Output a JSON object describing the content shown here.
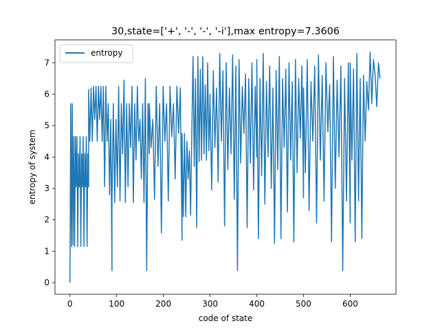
{
  "chart_data": {
    "type": "line",
    "title": "30,state=['+', '-', '-', '-i'],max entropy=7.3606",
    "xlabel": "code of state",
    "ylabel": "entropy of system",
    "xlim": [
      -32,
      698
    ],
    "ylim": [
      -0.37,
      7.73
    ],
    "xticks": [
      0,
      100,
      200,
      300,
      400,
      500,
      600
    ],
    "yticks": [
      0,
      1,
      2,
      3,
      4,
      5,
      6,
      7
    ],
    "grid": false,
    "legend": {
      "position": "top-left",
      "entries": [
        "entropy"
      ]
    },
    "series_color": "#1f77b4",
    "series": [
      {
        "name": "entropy",
        "x": [
          0,
          664
        ],
        "y_approx_shape": "dense-oscillating",
        "segments": [
          {
            "x0": 0,
            "x1": 40,
            "values": [
              0,
              5.7,
              1.15,
              5.7,
              1.2,
              4.65,
              1.15,
              4.65,
              3.05,
              4.65,
              1.15,
              4.1,
              3.05,
              4.65,
              1.15,
              4.1,
              3.05,
              4.65,
              1.15,
              4.1,
              3.05,
              4.65,
              1.15,
              4.1,
              3.05
            ]
          },
          {
            "x0": 40,
            "x1": 90,
            "values": [
              6.15,
              4.5,
              6.2,
              4.5,
              6.25,
              5.2,
              6.25,
              4.5,
              6.25,
              5.2,
              6.25,
              4.5,
              6.25,
              3.05,
              6.25,
              4.5,
              5.7,
              2.8,
              5.2,
              0.38
            ]
          },
          {
            "x0": 90,
            "x1": 170,
            "values": [
              2.6,
              5.7,
              2.55,
              5.2,
              3.05,
              6.25,
              2.6,
              5.7,
              4.1,
              6.45,
              2.55,
              5.7,
              3.05,
              5.7,
              4.3,
              6.25,
              2.55,
              5.7,
              3.9,
              6.25,
              4.5,
              5.2,
              3.3,
              5.7,
              2.55,
              6.5,
              0.38,
              5.7,
              4.1
            ]
          },
          {
            "x0": 170,
            "x1": 240,
            "values": [
              5.7,
              4.3,
              5.2,
              2.65,
              6.25,
              3.7,
              5.7,
              1.58,
              6.25,
              4.5,
              5.7,
              2.6,
              6.25,
              4.65,
              5.7,
              3.3,
              6.25,
              4.75,
              6.2,
              1.35
            ]
          },
          {
            "x0": 240,
            "x1": 300,
            "values": [
              4.75,
              2.1,
              4.75,
              2.1,
              4.5,
              3.3,
              4.2,
              2.15,
              4.75,
              7.2,
              3.7,
              6.5,
              1.75,
              7.2,
              3.85,
              6.8,
              3.9,
              7.2,
              4.1,
              6.3,
              3.9,
              7.0,
              4.2,
              6.0
            ]
          },
          {
            "x0": 300,
            "x1": 400,
            "values": [
              5.7,
              2.95,
              6.75,
              4.3,
              6.2,
              3.2,
              7.3,
              4.5,
              6.75,
              1.8,
              7.0,
              3.6,
              6.2,
              4.1,
              7.25,
              2.65,
              6.9,
              0.38,
              7.1,
              3.8,
              6.25,
              4.75,
              6.65,
              1.75,
              6.5,
              3.8,
              7.0,
              2.95,
              6.25,
              4.0
            ]
          },
          {
            "x0": 400,
            "x1": 500,
            "values": [
              7.1,
              1.4,
              6.5,
              3.4,
              7.3,
              2.5,
              6.4,
              4.0,
              6.9,
              3.0,
              6.2,
              1.25,
              6.75,
              3.6,
              7.2,
              1.4,
              6.5,
              4.3,
              6.8,
              2.25,
              7.0,
              3.9,
              6.4,
              1.3,
              7.1,
              3.5,
              6.5,
              4.6,
              6.9,
              2.7
            ]
          },
          {
            "x0": 500,
            "x1": 600,
            "values": [
              6.2,
              3.5,
              7.1,
              2.3,
              6.4,
              4.5,
              6.9,
              1.9,
              7.25,
              3.9,
              6.6,
              2.6,
              7.0,
              4.8,
              6.3,
              1.3,
              7.2,
              3.0,
              6.45,
              4.0,
              6.9,
              0.38,
              6.5,
              2.6,
              7.0,
              1.9
            ]
          },
          {
            "x0": 600,
            "x1": 664,
            "values": [
              7.0,
              3.9,
              6.8,
              1.3,
              7.3,
              2.6,
              6.5,
              1.4,
              6.6,
              4.5,
              6.4,
              5.5,
              7.35,
              5.7,
              7.1,
              6.6,
              5.6,
              7.0,
              6.5
            ]
          }
        ]
      }
    ]
  }
}
